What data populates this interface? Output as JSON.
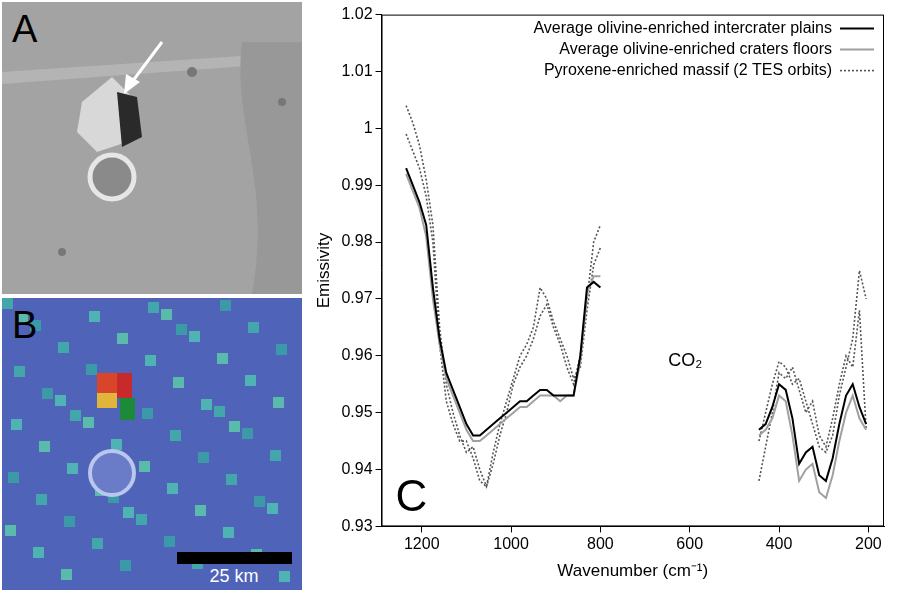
{
  "panels": [
    {
      "label": "A"
    },
    {
      "label": "B",
      "scale_bar": "25 km"
    }
  ],
  "chart_data": {
    "type": "line",
    "panel_label": "C",
    "x_label": "Wavenumber (cm⁻¹)",
    "y_label": "Emissivity",
    "x": [
      1235,
      1220,
      1205,
      1190,
      1175,
      1160,
      1145,
      1130,
      1115,
      1100,
      1085,
      1070,
      1055,
      1040,
      1025,
      1010,
      995,
      980,
      965,
      950,
      935,
      920,
      905,
      890,
      875,
      860,
      845,
      830,
      815,
      800,
      620,
      445,
      430,
      415,
      400,
      385,
      370,
      355,
      340,
      325,
      310,
      295,
      280,
      265,
      250,
      235,
      220,
      205
    ],
    "xlim": [
      1290,
      165
    ],
    "xticks": [
      1200,
      1000,
      800,
      600,
      400,
      200
    ],
    "ylim": [
      0.93,
      1.02
    ],
    "yticks": [
      0.93,
      0.94,
      0.95,
      0.96,
      0.97,
      0.98,
      0.99,
      1,
      1.01,
      1.02
    ],
    "grid": false,
    "legend": "upper right",
    "annotations": [
      {
        "text": "CO₂",
        "x": 610,
        "y": 0.959
      }
    ],
    "series": [
      {
        "name": "Average olivine-enriched intercrater plains",
        "color": "#000000",
        "line_style": "solid",
        "values": [
          0.993,
          0.99,
          0.987,
          0.983,
          0.972,
          0.963,
          0.957,
          0.954,
          0.951,
          0.948,
          0.946,
          0.946,
          0.947,
          0.948,
          0.949,
          0.95,
          0.951,
          0.952,
          0.952,
          0.953,
          0.954,
          0.954,
          0.953,
          0.953,
          0.953,
          0.953,
          0.96,
          0.972,
          0.973,
          0.972,
          null,
          0.947,
          0.948,
          0.951,
          0.955,
          0.954,
          0.949,
          0.941,
          0.943,
          0.944,
          0.939,
          0.938,
          0.942,
          0.948,
          0.953,
          0.955,
          0.951,
          0.948
        ]
      },
      {
        "name": "Average olivine-enriched craters floors",
        "color": "#a0a0a0",
        "line_style": "solid",
        "values": [
          0.992,
          0.989,
          0.986,
          0.981,
          0.97,
          0.962,
          0.956,
          0.953,
          0.95,
          0.947,
          0.945,
          0.945,
          0.946,
          0.947,
          0.948,
          0.949,
          0.95,
          0.951,
          0.951,
          0.952,
          0.953,
          0.953,
          0.953,
          0.952,
          0.953,
          0.953,
          0.959,
          0.971,
          0.974,
          0.974,
          null,
          0.946,
          0.947,
          0.949,
          0.953,
          0.952,
          0.946,
          0.938,
          0.94,
          0.941,
          0.936,
          0.935,
          0.939,
          0.945,
          0.95,
          0.953,
          0.949,
          0.947
        ]
      },
      {
        "name": "Pyroxene-enriched massif (2 TES orbits)",
        "color": "#555555",
        "line_style": "dotted",
        "values": [
          1.004,
          1.001,
          0.997,
          0.991,
          0.983,
          0.965,
          0.955,
          0.95,
          0.946,
          0.943,
          0.944,
          0.94,
          0.937,
          0.941,
          0.946,
          0.95,
          0.955,
          0.958,
          0.96,
          0.963,
          0.967,
          0.969,
          0.965,
          0.962,
          0.958,
          0.955,
          0.96,
          0.97,
          0.98,
          0.983,
          null,
          0.945,
          0.95,
          0.955,
          0.959,
          0.958,
          0.955,
          0.956,
          0.952,
          0.948,
          0.944,
          0.943,
          0.946,
          0.953,
          0.958,
          0.963,
          0.975,
          0.97
        ]
      },
      {
        "name": "Pyroxene-enriched massif (2 TES orbits)",
        "color": "#555555",
        "line_style": "dotted",
        "values": [
          0.999,
          0.996,
          0.993,
          0.988,
          0.98,
          0.962,
          0.952,
          0.948,
          0.945,
          0.945,
          0.942,
          0.938,
          0.937,
          0.943,
          0.948,
          0.952,
          0.956,
          0.96,
          0.962,
          0.965,
          0.972,
          0.97,
          0.966,
          0.963,
          0.96,
          0.956,
          0.958,
          0.968,
          0.976,
          0.979,
          null,
          0.938,
          0.944,
          0.95,
          0.957,
          0.956,
          0.958,
          0.954,
          0.95,
          0.952,
          0.946,
          0.944,
          0.949,
          0.955,
          0.96,
          0.958,
          0.968,
          0.947
        ]
      }
    ]
  }
}
